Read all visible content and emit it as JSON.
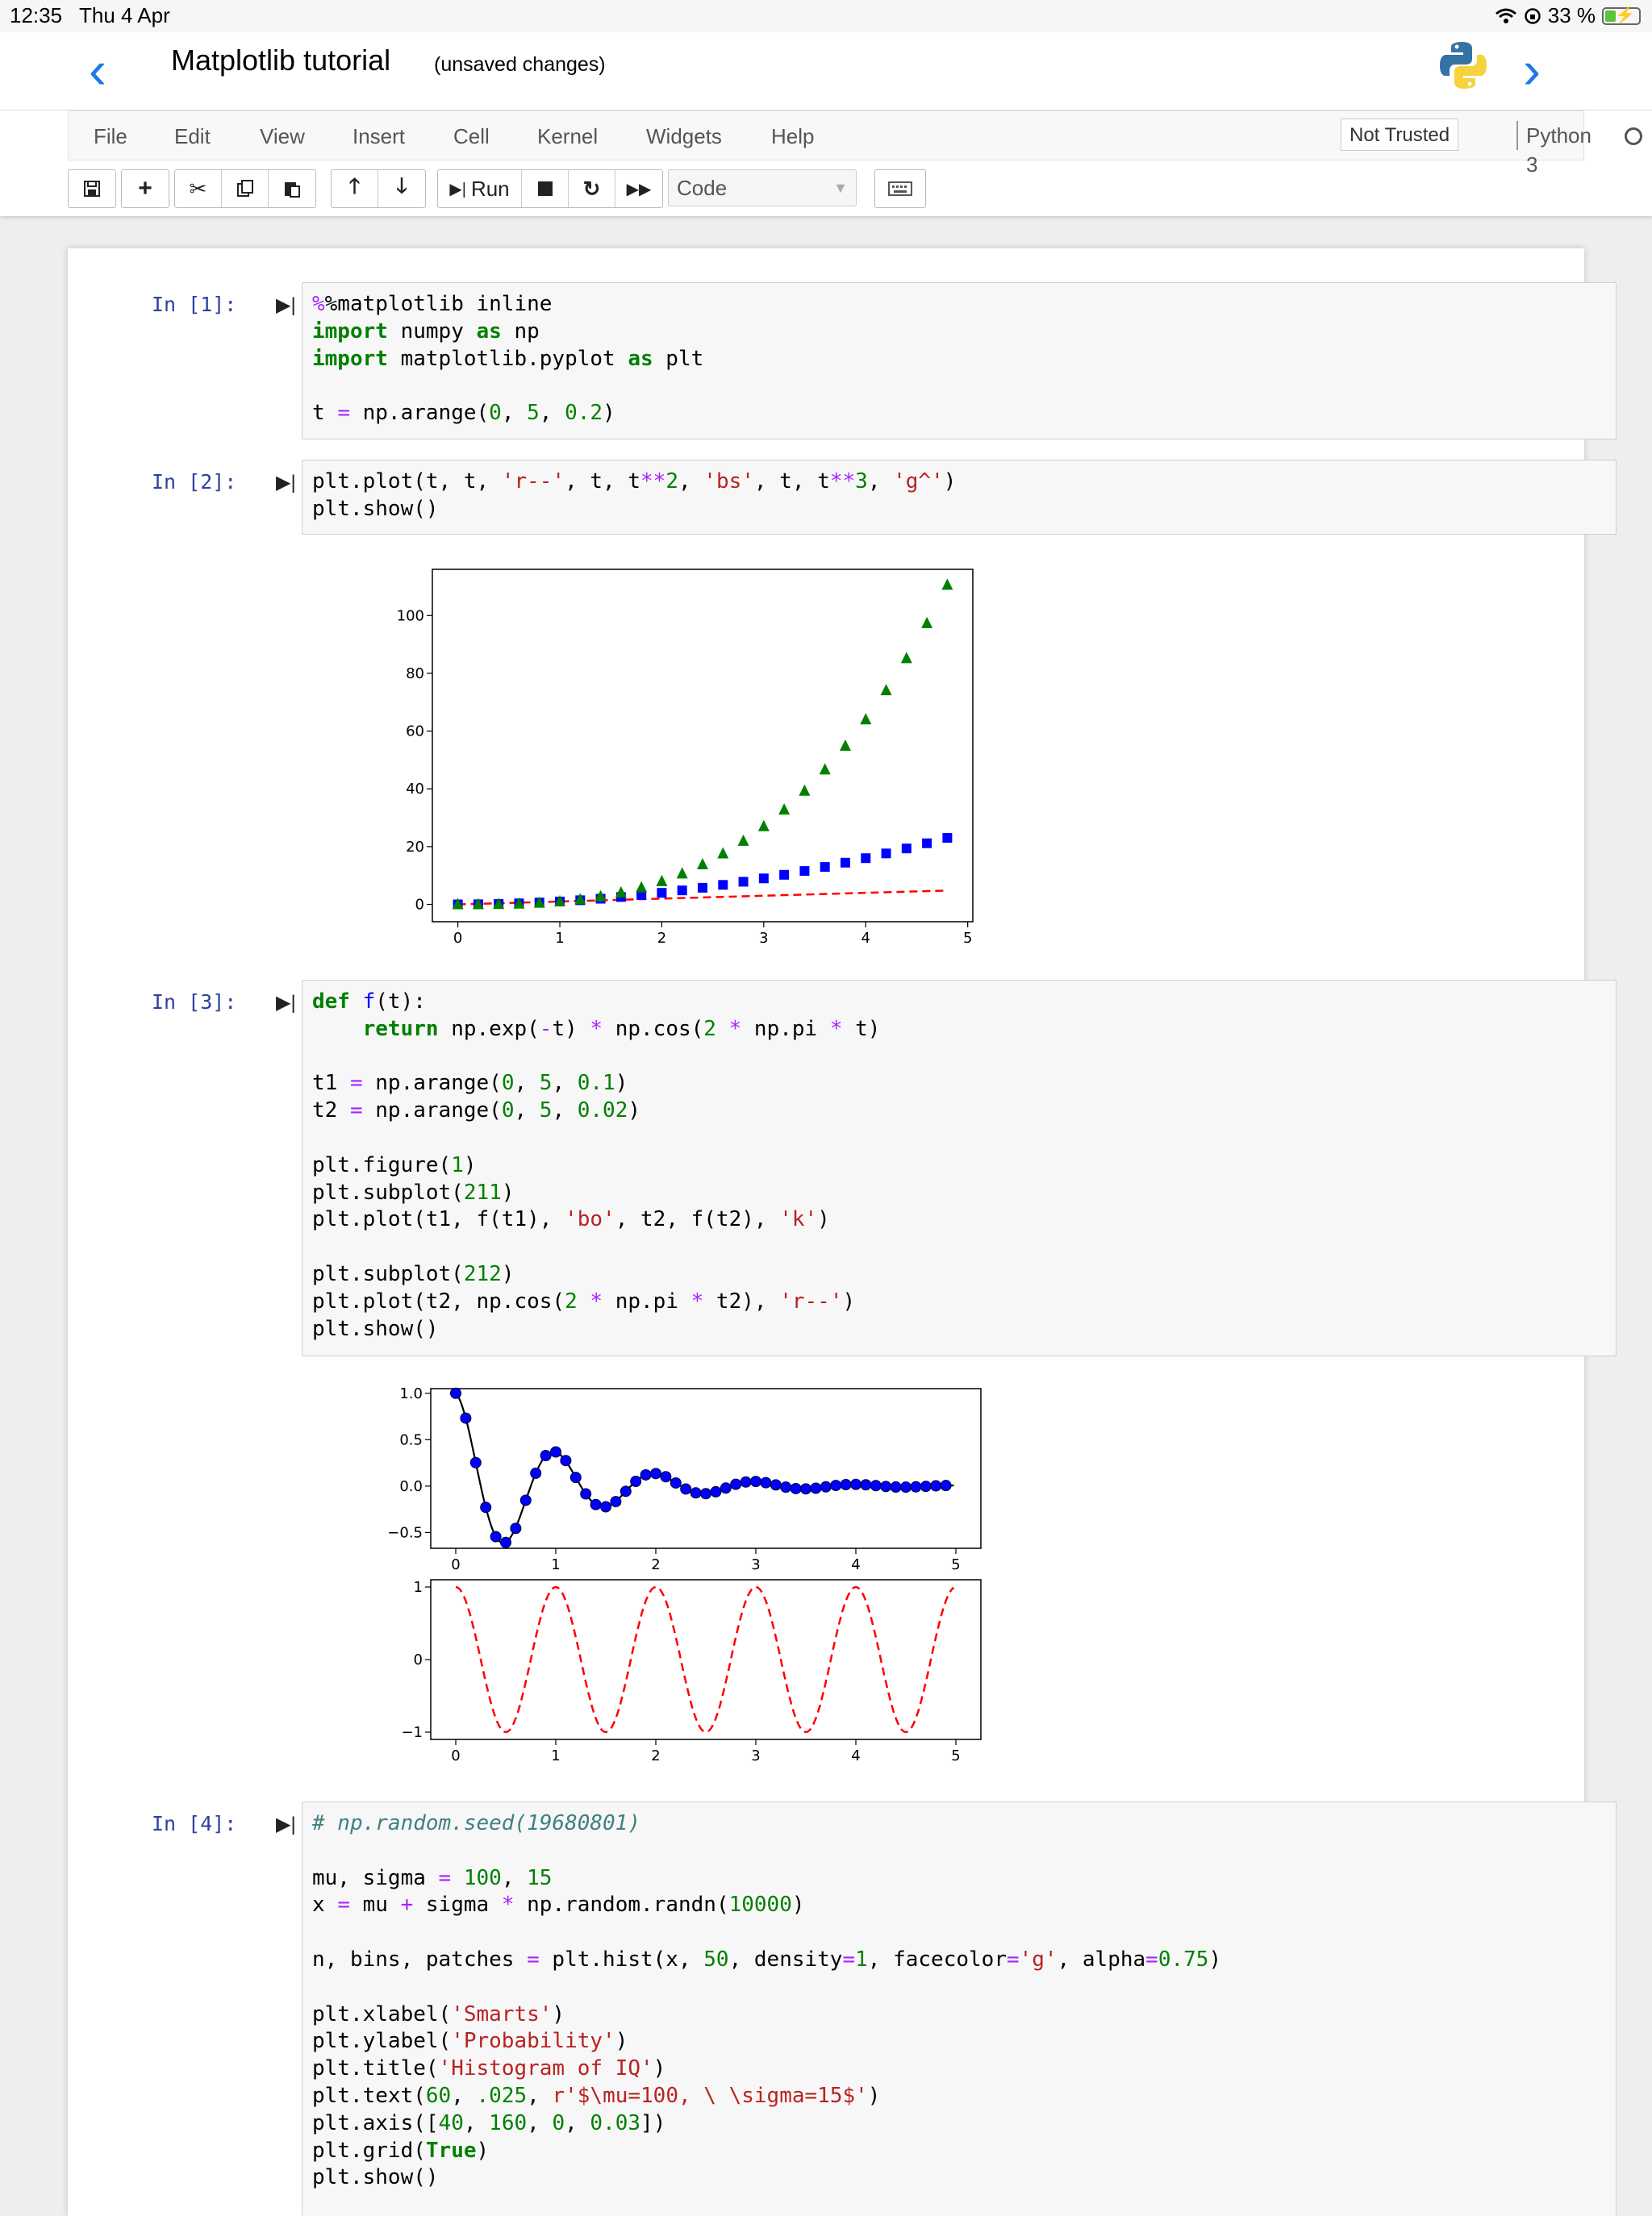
{
  "status_bar": {
    "time": "12:35",
    "date": "Thu 4 Apr",
    "battery": "33 %",
    "battery_level": 0.33
  },
  "header": {
    "title": "Matplotlib tutorial",
    "save_status": "(unsaved changes)"
  },
  "menu": [
    "File",
    "Edit",
    "View",
    "Insert",
    "Cell",
    "Kernel",
    "Widgets",
    "Help"
  ],
  "trusted": "Not Trusted",
  "kernel": "Python 3",
  "toolbar": {
    "run_label": "Run",
    "cell_type": "Code"
  },
  "cells": [
    {
      "prompt": "In [1]:",
      "lines": [
        "%matplotlib inline",
        "import numpy as np",
        "import matplotlib.pyplot as plt",
        "",
        "t = np.arange(0, 5, 0.2)"
      ]
    },
    {
      "prompt": "In [2]:",
      "lines": [
        "plt.plot(t, t, 'r--', t, t**2, 'bs', t, t**3, 'g^')",
        "plt.show()"
      ]
    },
    {
      "prompt": "In [3]:",
      "lines": [
        "def f(t):",
        "    return np.exp(-t) * np.cos(2 * np.pi * t)",
        "",
        "t1 = np.arange(0, 5, 0.1)",
        "t2 = np.arange(0, 5, 0.02)",
        "",
        "plt.figure(1)",
        "plt.subplot(211)",
        "plt.plot(t1, f(t1), 'bo', t2, f(t2), 'k')",
        "",
        "plt.subplot(212)",
        "plt.plot(t2, np.cos(2 * np.pi * t2), 'r--')",
        "plt.show()"
      ]
    },
    {
      "prompt": "In [4]:",
      "lines": [
        "# np.random.seed(19680801)",
        "",
        "mu, sigma = 100, 15",
        "x = mu + sigma * np.random.randn(10000)",
        "",
        "n, bins, patches = plt.hist(x, 50, density=1, facecolor='g', alpha=0.75)",
        "",
        "plt.xlabel('Smarts')",
        "plt.ylabel('Probability')",
        "plt.title('Histogram of IQ')",
        "plt.text(60, .025, r'$\\mu=100, \\ \\sigma=15$')",
        "plt.axis([40, 160, 0, 0.03])",
        "plt.grid(True)",
        "plt.show()"
      ]
    }
  ],
  "chart_data": [
    {
      "type": "line",
      "title": "",
      "xlabel": "",
      "ylabel": "",
      "xlim": [
        -0.25,
        5.05
      ],
      "ylim": [
        -6,
        116
      ],
      "xticks": [
        "0",
        "1",
        "2",
        "3",
        "4",
        "5"
      ],
      "yticks": [
        "0",
        "20",
        "40",
        "60",
        "80",
        "100"
      ],
      "x": [
        0,
        0.2,
        0.4,
        0.6,
        0.8,
        1.0,
        1.2,
        1.4,
        1.6,
        1.8,
        2.0,
        2.2,
        2.4,
        2.6,
        2.8,
        3.0,
        3.2,
        3.4,
        3.6,
        3.8,
        4.0,
        4.2,
        4.4,
        4.6,
        4.8
      ],
      "series": [
        {
          "style": "r--",
          "color": "#ff0000",
          "values": [
            0,
            0.2,
            0.4,
            0.6,
            0.8,
            1.0,
            1.2,
            1.4,
            1.6,
            1.8,
            2.0,
            2.2,
            2.4,
            2.6,
            2.8,
            3.0,
            3.2,
            3.4,
            3.6,
            3.8,
            4.0,
            4.2,
            4.4,
            4.6,
            4.8
          ]
        },
        {
          "style": "bs",
          "color": "#0000ff",
          "values": [
            0,
            0.04,
            0.16,
            0.36,
            0.64,
            1.0,
            1.44,
            1.96,
            2.56,
            3.24,
            4.0,
            4.84,
            5.76,
            6.76,
            7.84,
            9.0,
            10.24,
            11.56,
            12.96,
            14.44,
            16.0,
            17.64,
            19.36,
            21.16,
            23.04
          ]
        },
        {
          "style": "g^",
          "color": "#008000",
          "values": [
            0,
            0.008,
            0.064,
            0.216,
            0.512,
            1.0,
            1.728,
            2.744,
            4.096,
            5.832,
            8.0,
            10.648,
            13.824,
            17.576,
            21.952,
            27.0,
            32.768,
            39.304,
            46.656,
            54.872,
            64.0,
            74.088,
            85.184,
            97.336,
            110.592
          ]
        }
      ]
    },
    {
      "type": "line",
      "title": "",
      "xlabel": "",
      "ylabel": "",
      "xlim": [
        -0.25,
        5.25
      ],
      "ylim": [
        -0.67,
        1.05
      ],
      "xticks": [
        "0",
        "1",
        "2",
        "3",
        "4",
        "5"
      ],
      "yticks": [
        "−0.5",
        "0.0",
        "0.5",
        "1.0"
      ],
      "series": [
        {
          "style": "bo",
          "color": "#0000ff",
          "x": [
            0,
            0.1,
            0.2,
            0.3,
            0.4,
            0.5,
            0.6,
            0.7,
            0.8,
            0.9,
            1.0,
            1.1,
            1.2,
            1.3,
            1.4,
            1.5,
            1.6,
            1.7,
            1.8,
            1.9,
            2.0,
            2.1,
            2.2,
            2.3,
            2.4,
            2.5,
            2.6,
            2.7,
            2.8,
            2.9,
            3.0,
            3.1,
            3.2,
            3.3,
            3.4,
            3.5,
            3.6,
            3.7,
            3.8,
            3.9,
            4.0,
            4.1,
            4.2,
            4.3,
            4.4,
            4.5,
            4.6,
            4.7,
            4.8,
            4.9
          ],
          "values": [
            1.0,
            0.732,
            0.253,
            -0.229,
            -0.545,
            -0.607,
            -0.455,
            -0.153,
            0.139,
            0.329,
            0.368,
            0.275,
            0.093,
            -0.084,
            -0.199,
            -0.223,
            -0.167,
            -0.056,
            0.051,
            0.121,
            0.135,
            0.101,
            0.034,
            -0.031,
            -0.073,
            -0.082,
            -0.061,
            -0.021,
            0.019,
            0.044,
            0.05,
            0.037,
            0.013,
            -0.011,
            -0.027,
            -0.03,
            -0.023,
            -0.008,
            0.007,
            0.016,
            0.018,
            0.014,
            0.005,
            -0.004,
            -0.01,
            -0.011,
            -0.008,
            -0.003,
            0.003,
            0.006
          ]
        },
        {
          "style": "k",
          "color": "#000000",
          "function": "exp(-t)*cos(2*pi*t)",
          "x_range": [
            0,
            4.98
          ],
          "step": 0.02
        }
      ]
    },
    {
      "type": "line",
      "title": "",
      "xlabel": "",
      "ylabel": "",
      "xlim": [
        -0.25,
        5.25
      ],
      "ylim": [
        -1.1,
        1.1
      ],
      "xticks": [
        "0",
        "1",
        "2",
        "3",
        "4",
        "5"
      ],
      "yticks": [
        "−1",
        "0",
        "1"
      ],
      "series": [
        {
          "style": "r--",
          "color": "#ff0000",
          "function": "cos(2*pi*t)",
          "x_range": [
            0,
            4.98
          ],
          "step": 0.02
        }
      ]
    }
  ]
}
